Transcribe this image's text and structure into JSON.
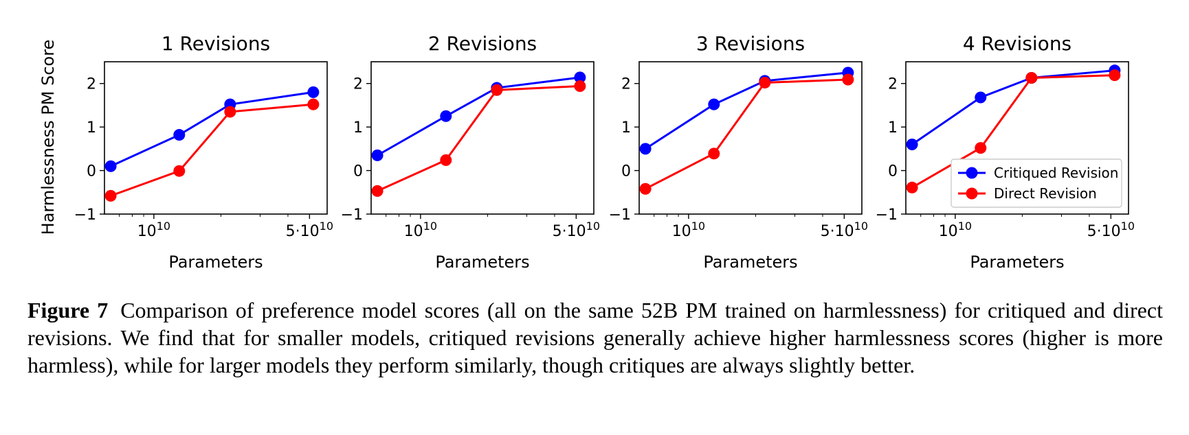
{
  "chart_data": [
    {
      "type": "line",
      "title": "1 Revisions",
      "xlabel": "Parameters",
      "ylabel": "Harmlessness PM Score",
      "xscale": "log",
      "xlim": [
        6000000000.0,
        60000000000.0
      ],
      "ylim": [
        -1,
        2.5
      ],
      "yticks": [
        -1,
        0,
        1,
        2
      ],
      "ytick_labels": [
        "−1",
        "0",
        "1",
        "2"
      ],
      "xticks": [
        10000000000.0,
        50000000000.0
      ],
      "xtick_labels": [
        "10",
        "5·10"
      ],
      "xtick_exponents": [
        "10",
        "10"
      ],
      "x": [
        6400000000.0,
        13000000000.0,
        22000000000.0,
        52000000000.0
      ],
      "series": [
        {
          "name": "Critiqued Revision",
          "color": "#0000ff",
          "values": [
            0.1,
            0.82,
            1.52,
            1.8
          ]
        },
        {
          "name": "Direct Revision",
          "color": "#ff0000",
          "values": [
            -0.58,
            -0.01,
            1.35,
            1.52
          ]
        }
      ],
      "legend": false,
      "grid": false
    },
    {
      "type": "line",
      "title": "2 Revisions",
      "xlabel": "Parameters",
      "xscale": "log",
      "xlim": [
        6000000000.0,
        60000000000.0
      ],
      "ylim": [
        -1,
        2.5
      ],
      "yticks": [
        -1,
        0,
        1,
        2
      ],
      "ytick_labels": [
        "−1",
        "0",
        "1",
        "2"
      ],
      "xticks": [
        10000000000.0,
        50000000000.0
      ],
      "xtick_labels": [
        "10",
        "5·10"
      ],
      "xtick_exponents": [
        "10",
        "10"
      ],
      "x": [
        6400000000.0,
        13000000000.0,
        22000000000.0,
        52000000000.0
      ],
      "series": [
        {
          "name": "Critiqued Revision",
          "color": "#0000ff",
          "values": [
            0.35,
            1.25,
            1.9,
            2.14
          ]
        },
        {
          "name": "Direct Revision",
          "color": "#ff0000",
          "values": [
            -0.47,
            0.24,
            1.85,
            1.94
          ]
        }
      ],
      "legend": false,
      "grid": false
    },
    {
      "type": "line",
      "title": "3 Revisions",
      "xlabel": "Parameters",
      "xscale": "log",
      "xlim": [
        6000000000.0,
        60000000000.0
      ],
      "ylim": [
        -1,
        2.5
      ],
      "yticks": [
        -1,
        0,
        1,
        2
      ],
      "ytick_labels": [
        "−1",
        "0",
        "1",
        "2"
      ],
      "xticks": [
        10000000000.0,
        50000000000.0
      ],
      "xtick_labels": [
        "10",
        "5·10"
      ],
      "xtick_exponents": [
        "10",
        "10"
      ],
      "x": [
        6400000000.0,
        13000000000.0,
        22000000000.0,
        52000000000.0
      ],
      "series": [
        {
          "name": "Critiqued Revision",
          "color": "#0000ff",
          "values": [
            0.5,
            1.52,
            2.06,
            2.25
          ]
        },
        {
          "name": "Direct Revision",
          "color": "#ff0000",
          "values": [
            -0.42,
            0.39,
            2.02,
            2.09
          ]
        }
      ],
      "legend": false,
      "grid": false
    },
    {
      "type": "line",
      "title": "4 Revisions",
      "xlabel": "Parameters",
      "xscale": "log",
      "xlim": [
        6000000000.0,
        60000000000.0
      ],
      "ylim": [
        -1,
        2.5
      ],
      "yticks": [
        -1,
        0,
        1,
        2
      ],
      "ytick_labels": [
        "−1",
        "0",
        "1",
        "2"
      ],
      "xticks": [
        10000000000.0,
        50000000000.0
      ],
      "xtick_labels": [
        "10",
        "5·10"
      ],
      "xtick_exponents": [
        "10",
        "10"
      ],
      "x": [
        6400000000.0,
        13000000000.0,
        22000000000.0,
        52000000000.0
      ],
      "series": [
        {
          "name": "Critiqued Revision",
          "color": "#0000ff",
          "values": [
            0.6,
            1.68,
            2.13,
            2.3
          ]
        },
        {
          "name": "Direct Revision",
          "color": "#ff0000",
          "values": [
            -0.39,
            0.52,
            2.13,
            2.19
          ]
        }
      ],
      "legend": true,
      "legend_loc": "lower right",
      "grid": false
    }
  ],
  "caption": {
    "label": "Figure 7",
    "text": "Comparison of preference model scores (all on the same 52B PM trained on harmlessness) for critiqued and direct revisions. We find that for smaller models, critiqued revisions generally achieve higher harmlessness scores (higher is more harmless), while for larger models they perform similarly, though critiques are always slightly better."
  }
}
